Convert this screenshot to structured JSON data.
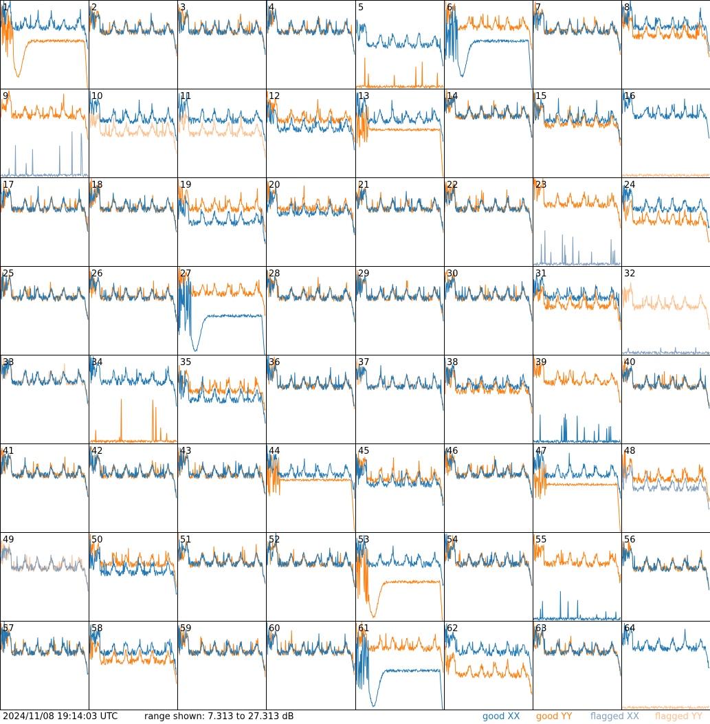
{
  "chart_data": {
    "type": "line",
    "title": "",
    "timestamp": "2024/11/08 19:14:03 UTC",
    "range_text": "range shown: 7.313 to 27.313 dB",
    "ylim": [
      7.313,
      27.313
    ],
    "grid_rows": 8,
    "grid_cols": 8,
    "legend": [
      {
        "label": "good XX",
        "color": "#1f77b4"
      },
      {
        "label": "good YY",
        "color": "#ff7f0e"
      },
      {
        "label": "flagged XX",
        "color": "#7f9fbf"
      },
      {
        "label": "flagged YY",
        "color": "#ffbf8a"
      }
    ],
    "legend_position": "bottom-right",
    "panels": [
      {
        "n": "1",
        "xx": [
          "good",
          "normal",
          21
        ],
        "yy": [
          "good",
          "dip",
          20
        ]
      },
      {
        "n": "2",
        "xx": [
          "good",
          "normal",
          20
        ],
        "yy": [
          "good",
          "normal",
          20
        ]
      },
      {
        "n": "3",
        "xx": [
          "good",
          "normal",
          20
        ],
        "yy": [
          "good",
          "normal",
          20
        ]
      },
      {
        "n": "4",
        "xx": [
          "good",
          "normal",
          20
        ],
        "yy": [
          "good",
          "normal",
          20
        ]
      },
      {
        "n": "5",
        "xx": [
          "good",
          "normal",
          17
        ],
        "yy": [
          "good",
          "dead",
          20
        ]
      },
      {
        "n": "6",
        "xx": [
          "good",
          "dip",
          20
        ],
        "yy": [
          "good",
          "normal",
          21
        ]
      },
      {
        "n": "7",
        "xx": [
          "good",
          "normal",
          20
        ],
        "yy": [
          "good",
          "normal",
          20
        ]
      },
      {
        "n": "8",
        "xx": [
          "good",
          "normal",
          21
        ],
        "yy": [
          "good",
          "normal",
          19
        ]
      },
      {
        "n": "9",
        "xx": [
          "flagged",
          "dead",
          18
        ],
        "yy": [
          "good",
          "normal",
          21
        ]
      },
      {
        "n": "10",
        "xx": [
          "good",
          "normal",
          20
        ],
        "yy": [
          "flagged",
          "normal",
          17
        ]
      },
      {
        "n": "11",
        "xx": [
          "good",
          "normal",
          20
        ],
        "yy": [
          "flagged",
          "normal",
          17
        ]
      },
      {
        "n": "12",
        "xx": [
          "good",
          "normal",
          18
        ],
        "yy": [
          "good",
          "normal",
          20
        ]
      },
      {
        "n": "13",
        "xx": [
          "good",
          "normal",
          20
        ],
        "yy": [
          "good",
          "droop",
          18
        ]
      },
      {
        "n": "14",
        "xx": [
          "good",
          "normal",
          21
        ],
        "yy": [
          "good",
          "normal",
          21
        ]
      },
      {
        "n": "15",
        "xx": [
          "good",
          "normal",
          20
        ],
        "yy": [
          "good",
          "normal",
          19
        ]
      },
      {
        "n": "16",
        "xx": [
          "good",
          "normal",
          21
        ],
        "yy": [
          "flagged",
          "dead",
          8
        ]
      },
      {
        "n": "17",
        "xx": [
          "good",
          "normal",
          20
        ],
        "yy": [
          "good",
          "normal",
          20
        ]
      },
      {
        "n": "18",
        "xx": [
          "good",
          "normal",
          20
        ],
        "yy": [
          "good",
          "normal",
          20
        ]
      },
      {
        "n": "19",
        "xx": [
          "good",
          "normal",
          17
        ],
        "yy": [
          "good",
          "normal",
          20
        ]
      },
      {
        "n": "20",
        "xx": [
          "good",
          "normal",
          19
        ],
        "yy": [
          "good",
          "normal",
          20
        ]
      },
      {
        "n": "21",
        "xx": [
          "good",
          "normal",
          20
        ],
        "yy": [
          "good",
          "normal",
          20
        ]
      },
      {
        "n": "22",
        "xx": [
          "good",
          "normal",
          20
        ],
        "yy": [
          "good",
          "normal",
          20
        ]
      },
      {
        "n": "23",
        "xx": [
          "flagged",
          "dead",
          16
        ],
        "yy": [
          "good",
          "normal",
          21
        ]
      },
      {
        "n": "24",
        "xx": [
          "good",
          "normal",
          20
        ],
        "yy": [
          "good",
          "normal",
          17
        ]
      },
      {
        "n": "25",
        "xx": [
          "good",
          "normal",
          20
        ],
        "yy": [
          "good",
          "normal",
          20
        ]
      },
      {
        "n": "26",
        "xx": [
          "good",
          "normal",
          20
        ],
        "yy": [
          "good",
          "normal",
          20
        ]
      },
      {
        "n": "27",
        "xx": [
          "good",
          "dip",
          18
        ],
        "yy": [
          "good",
          "normal",
          21
        ]
      },
      {
        "n": "28",
        "xx": [
          "good",
          "normal",
          20
        ],
        "yy": [
          "good",
          "normal",
          20
        ]
      },
      {
        "n": "29",
        "xx": [
          "good",
          "normal",
          20
        ],
        "yy": [
          "good",
          "normal",
          20
        ]
      },
      {
        "n": "30",
        "xx": [
          "good",
          "normal",
          20
        ],
        "yy": [
          "good",
          "normal",
          20
        ]
      },
      {
        "n": "31",
        "xx": [
          "good",
          "normal",
          20
        ],
        "yy": [
          "good",
          "normal",
          18
        ]
      },
      {
        "n": "32",
        "xx": [
          "flagged",
          "dead",
          9
        ],
        "yy": [
          "flagged",
          "normal",
          18
        ]
      },
      {
        "n": "33",
        "xx": [
          "good",
          "normal",
          21
        ],
        "yy": [
          "flagged",
          "normal",
          21
        ]
      },
      {
        "n": "34",
        "xx": [
          "good",
          "normal",
          21
        ],
        "yy": [
          "good",
          "dead",
          20
        ]
      },
      {
        "n": "35",
        "xx": [
          "good",
          "normal",
          17
        ],
        "yy": [
          "good",
          "normal",
          19
        ]
      },
      {
        "n": "36",
        "xx": [
          "good",
          "normal",
          20
        ],
        "yy": [
          "good",
          "normal",
          20
        ]
      },
      {
        "n": "37",
        "xx": [
          "good",
          "normal",
          20
        ],
        "yy": [
          "flagged",
          "normal",
          20
        ]
      },
      {
        "n": "38",
        "xx": [
          "good",
          "normal",
          20
        ],
        "yy": [
          "good",
          "normal",
          19
        ]
      },
      {
        "n": "39",
        "xx": [
          "good",
          "dead",
          14
        ],
        "yy": [
          "good",
          "normal",
          21
        ]
      },
      {
        "n": "40",
        "xx": [
          "good",
          "normal",
          20
        ],
        "yy": [
          "good",
          "normal",
          20
        ]
      },
      {
        "n": "41",
        "xx": [
          "good",
          "normal",
          20
        ],
        "yy": [
          "good",
          "normal",
          20
        ]
      },
      {
        "n": "42",
        "xx": [
          "good",
          "normal",
          20
        ],
        "yy": [
          "good",
          "normal",
          20
        ]
      },
      {
        "n": "43",
        "xx": [
          "good",
          "normal",
          20
        ],
        "yy": [
          "good",
          "normal",
          20
        ]
      },
      {
        "n": "44",
        "xx": [
          "good",
          "normal",
          20
        ],
        "yy": [
          "good",
          "droop",
          19
        ]
      },
      {
        "n": "45",
        "xx": [
          "good",
          "normal",
          18
        ],
        "yy": [
          "good",
          "normal",
          19
        ]
      },
      {
        "n": "46",
        "xx": [
          "good",
          "normal",
          20
        ],
        "yy": [
          "good",
          "normal",
          20
        ]
      },
      {
        "n": "47",
        "xx": [
          "good",
          "normal",
          20
        ],
        "yy": [
          "good",
          "droop",
          18
        ]
      },
      {
        "n": "48",
        "xx": [
          "flagged",
          "normal",
          17
        ],
        "yy": [
          "good",
          "normal",
          19
        ]
      },
      {
        "n": "49",
        "xx": [
          "flagged",
          "normal",
          19
        ],
        "yy": [
          "flagged",
          "normal",
          19
        ]
      },
      {
        "n": "50",
        "xx": [
          "good",
          "normal",
          18
        ],
        "yy": [
          "good",
          "normal",
          20
        ]
      },
      {
        "n": "51",
        "xx": [
          "good",
          "normal",
          20
        ],
        "yy": [
          "good",
          "normal",
          20
        ]
      },
      {
        "n": "52",
        "xx": [
          "good",
          "normal",
          20
        ],
        "yy": [
          "good",
          "normal",
          20
        ]
      },
      {
        "n": "53",
        "xx": [
          "good",
          "normal",
          20
        ],
        "yy": [
          "good",
          "dip",
          18
        ]
      },
      {
        "n": "54",
        "xx": [
          "good",
          "normal",
          20
        ],
        "yy": [
          "good",
          "normal",
          20
        ]
      },
      {
        "n": "55",
        "xx": [
          "good",
          "dead",
          14
        ],
        "yy": [
          "good",
          "normal",
          20
        ]
      },
      {
        "n": "56",
        "xx": [
          "good",
          "normal",
          19
        ],
        "yy": [
          "good",
          "normal",
          19
        ]
      },
      {
        "n": "57",
        "xx": [
          "good",
          "normal",
          20
        ],
        "yy": [
          "good",
          "normal",
          20
        ]
      },
      {
        "n": "58",
        "xx": [
          "good",
          "normal",
          20
        ],
        "yy": [
          "good",
          "normal",
          18
        ]
      },
      {
        "n": "59",
        "xx": [
          "good",
          "normal",
          20
        ],
        "yy": [
          "good",
          "normal",
          20
        ]
      },
      {
        "n": "60",
        "xx": [
          "good",
          "normal",
          20
        ],
        "yy": [
          "good",
          "normal",
          20
        ]
      },
      {
        "n": "61",
        "xx": [
          "good",
          "dip",
          18
        ],
        "yy": [
          "good",
          "normal",
          21
        ]
      },
      {
        "n": "62",
        "xx": [
          "good",
          "normal",
          20
        ],
        "yy": [
          "good",
          "normal",
          15
        ]
      },
      {
        "n": "63",
        "xx": [
          "good",
          "normal",
          20
        ],
        "yy": [
          "good",
          "normal",
          20
        ]
      },
      {
        "n": "64",
        "xx": [
          "good",
          "normal",
          21
        ],
        "yy": [
          "flagged",
          "dead",
          8
        ]
      }
    ]
  }
}
